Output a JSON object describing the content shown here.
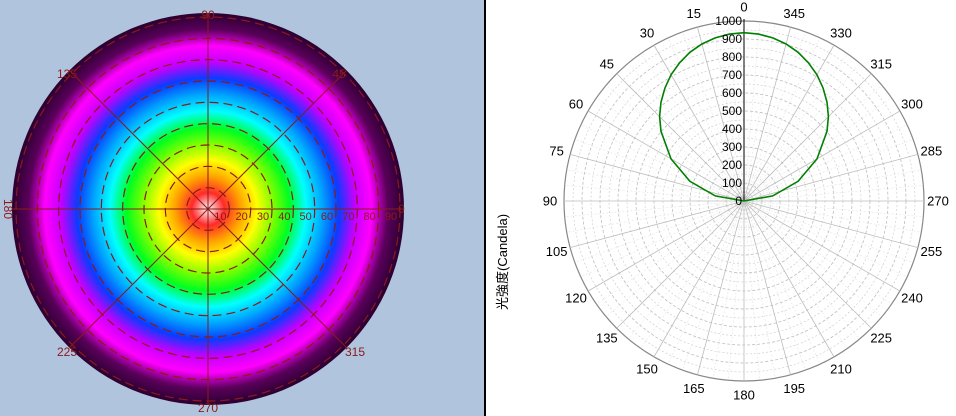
{
  "chart_data": [
    {
      "type": "heatmap",
      "plot": "polar-false-color",
      "angle_labels": [
        {
          "text": "90",
          "angle": 90
        },
        {
          "text": "135",
          "angle": 135
        },
        {
          "text": "45",
          "angle": 45
        },
        {
          "text": "180",
          "angle": 180
        },
        {
          "text": "0",
          "angle": 0
        },
        {
          "text": "225",
          "angle": 225
        },
        {
          "text": "315",
          "angle": 315
        },
        {
          "text": "270",
          "angle": 270
        }
      ],
      "radial_ticks": [
        "10",
        "20",
        "30",
        "40",
        "50",
        "60",
        "70",
        "80",
        "90"
      ],
      "radial_range": [
        0,
        90
      ],
      "colormap": [
        "#ffffff",
        "#ff2a2a",
        "#ffa200",
        "#ffff00",
        "#7fff00",
        "#00ff20",
        "#00ffff",
        "#00a6ff",
        "#0a3cff",
        "#c400ff",
        "#ff00ff",
        "#5a005a",
        "#2a0030"
      ],
      "grid_color": "#8b1a1a",
      "background": "#b0c4de"
    },
    {
      "type": "line",
      "plot": "polar",
      "ylabel": "光強度(Candela)",
      "rlim": [
        0,
        1000
      ],
      "radial_ticks": [
        "0",
        "100",
        "200",
        "300",
        "400",
        "500",
        "600",
        "700",
        "800",
        "900",
        "1000"
      ],
      "angle_labels": [
        "0",
        "15",
        "30",
        "45",
        "60",
        "75",
        "90",
        "105",
        "120",
        "135",
        "150",
        "165",
        "180",
        "195",
        "210",
        "225",
        "240",
        "255",
        "270",
        "285",
        "300",
        "315",
        "330",
        "345"
      ],
      "series": [
        {
          "color": "#008000",
          "angles": [
            -90,
            -80,
            -70,
            -60,
            -50,
            -45,
            -40,
            -35,
            -30,
            -25,
            -20,
            -15,
            -10,
            -5,
            0,
            5,
            10,
            15,
            20,
            25,
            30,
            35,
            40,
            45,
            50,
            60,
            70,
            80,
            90
          ],
          "values": [
            0,
            162,
            320,
            468,
            602,
            663,
            717,
            766,
            810,
            847,
            879,
            903,
            920,
            931,
            935,
            931,
            920,
            903,
            879,
            847,
            810,
            766,
            717,
            663,
            602,
            468,
            320,
            162,
            0
          ]
        }
      ]
    }
  ]
}
